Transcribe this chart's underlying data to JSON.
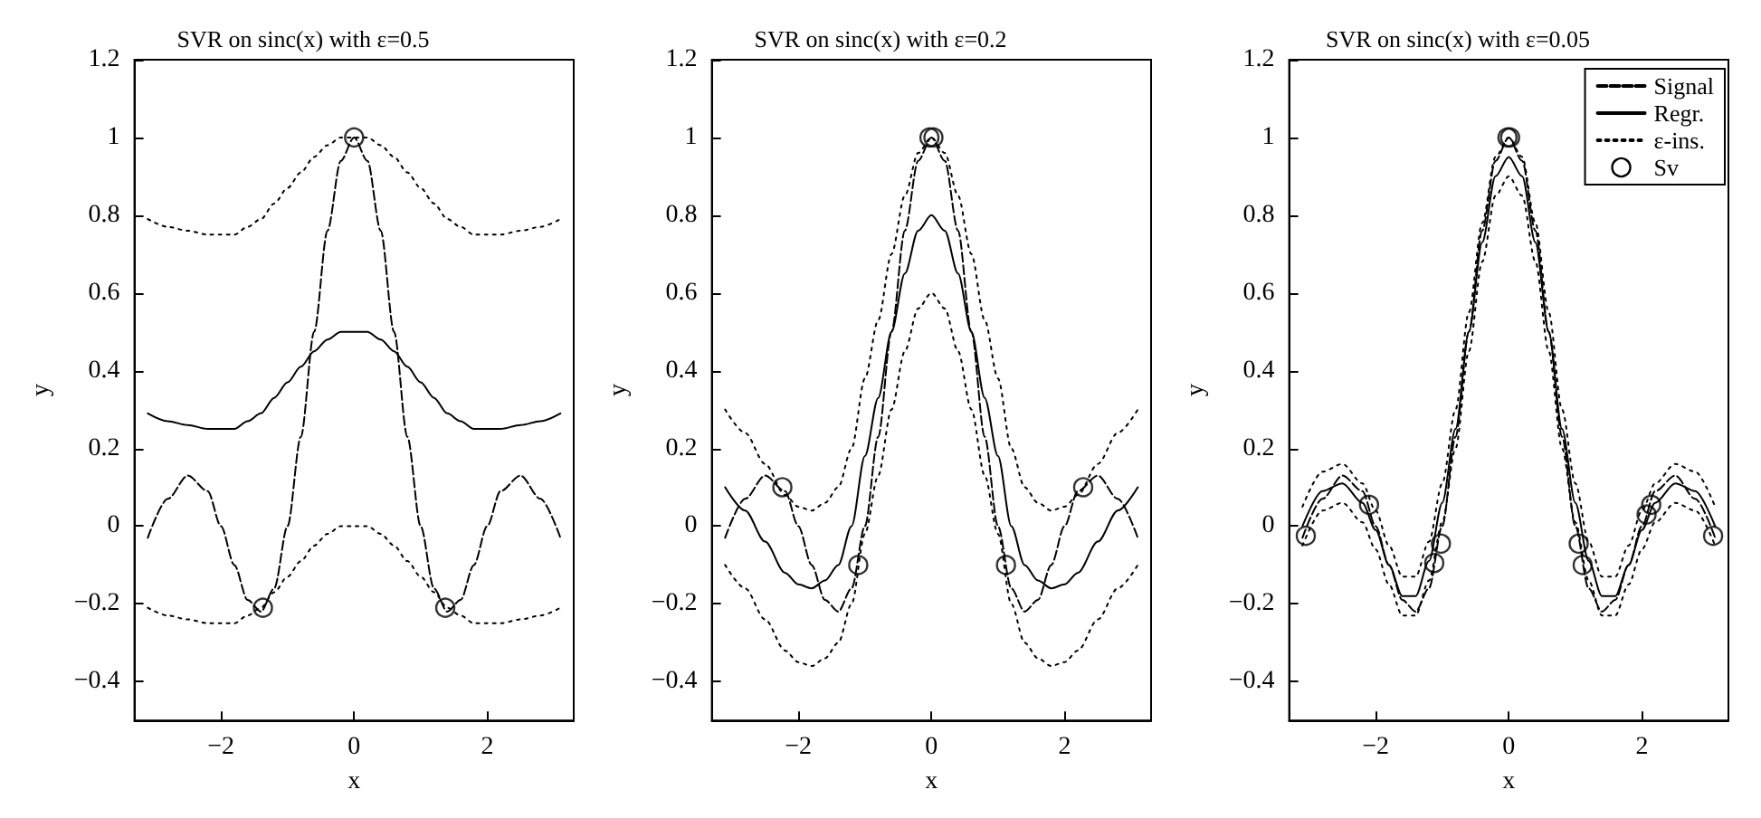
{
  "chart_data": [
    {
      "type": "line",
      "title": "SVR on sinc(x) with ε=0.5",
      "xlabel": "x",
      "ylabel": "y",
      "xlim": [
        -3.3,
        3.3
      ],
      "xticks": [
        -2,
        0,
        2
      ],
      "ylim": [
        -0.5,
        1.2
      ],
      "yticks": [
        -0.4,
        -0.2,
        0,
        0.2,
        0.4,
        0.6,
        0.8,
        1,
        1.2
      ],
      "grid": false,
      "legend": false,
      "x": [
        -3.1,
        -2.8,
        -2.5,
        -2.2,
        -2,
        -1.8,
        -1.6,
        -1.4,
        -1.2,
        -1,
        -0.8,
        -0.6,
        -0.4,
        -0.2,
        0,
        0.2,
        0.4,
        0.6,
        0.8,
        1,
        1.2,
        1.4,
        1.6,
        1.8,
        2,
        2.2,
        2.5,
        2.8,
        3.1
      ],
      "series": [
        {
          "color": "#000000",
          "line_style": "dashed",
          "marker": "none",
          "values": [
            -0.03,
            0.07,
            0.13,
            0.09,
            0,
            -0.1,
            -0.19,
            -0.22,
            -0.16,
            0,
            0.23,
            0.5,
            0.76,
            0.94,
            1,
            0.94,
            0.76,
            0.5,
            0.23,
            0,
            -0.16,
            -0.22,
            -0.19,
            -0.1,
            0,
            0.09,
            0.13,
            0.07,
            -0.03
          ]
        },
        {
          "color": "#000000",
          "line_style": "solid",
          "marker": "none",
          "values": [
            0.29,
            0.27,
            0.26,
            0.25,
            0.25,
            0.25,
            0.27,
            0.29,
            0.33,
            0.37,
            0.41,
            0.45,
            0.48,
            0.5,
            0.5,
            0.5,
            0.48,
            0.45,
            0.41,
            0.37,
            0.33,
            0.29,
            0.27,
            0.25,
            0.25,
            0.25,
            0.26,
            0.27,
            0.29
          ]
        },
        {
          "color": "#000000",
          "line_style": "dotted",
          "marker": "none",
          "values": [
            0.79,
            0.77,
            0.76,
            0.75,
            0.75,
            0.75,
            0.77,
            0.79,
            0.83,
            0.87,
            0.91,
            0.95,
            0.98,
            1,
            1,
            1,
            0.98,
            0.95,
            0.91,
            0.87,
            0.83,
            0.79,
            0.77,
            0.75,
            0.75,
            0.75,
            0.76,
            0.77,
            0.79
          ]
        },
        {
          "color": "#000000",
          "line_style": "dotted",
          "marker": "none",
          "values": [
            -0.21,
            -0.23,
            -0.24,
            -0.25,
            -0.25,
            -0.25,
            -0.23,
            -0.21,
            -0.17,
            -0.13,
            -0.09,
            -0.05,
            -0.02,
            0,
            0,
            0,
            -0.02,
            -0.05,
            -0.09,
            -0.13,
            -0.17,
            -0.21,
            -0.23,
            -0.25,
            -0.25,
            -0.25,
            -0.24,
            -0.23,
            -0.21
          ]
        },
        {
          "type": "scatter",
          "color": "#000000",
          "marker": "circle",
          "x": [
            -1.37,
            0,
            1.37
          ],
          "values": [
            -0.21,
            1,
            -0.21
          ]
        }
      ]
    },
    {
      "type": "line",
      "title": "SVR on sinc(x) with ε=0.2",
      "xlabel": "x",
      "ylabel": "y",
      "xlim": [
        -3.3,
        3.3
      ],
      "xticks": [
        -2,
        0,
        2
      ],
      "ylim": [
        -0.5,
        1.2
      ],
      "yticks": [
        -0.4,
        -0.2,
        0,
        0.2,
        0.4,
        0.6,
        0.8,
        1,
        1.2
      ],
      "grid": false,
      "legend": false,
      "x": [
        -3.1,
        -2.8,
        -2.5,
        -2.2,
        -2,
        -1.8,
        -1.6,
        -1.4,
        -1.2,
        -1,
        -0.8,
        -0.6,
        -0.4,
        -0.2,
        0,
        0.2,
        0.4,
        0.6,
        0.8,
        1,
        1.2,
        1.4,
        1.6,
        1.8,
        2,
        2.2,
        2.5,
        2.8,
        3.1
      ],
      "series": [
        {
          "color": "#000000",
          "line_style": "dashed",
          "marker": "none",
          "values": [
            -0.03,
            0.07,
            0.13,
            0.09,
            0,
            -0.1,
            -0.19,
            -0.22,
            -0.16,
            0,
            0.23,
            0.5,
            0.76,
            0.94,
            1,
            0.94,
            0.76,
            0.5,
            0.23,
            0,
            -0.16,
            -0.22,
            -0.19,
            -0.1,
            0,
            0.09,
            0.13,
            0.07,
            -0.03
          ]
        },
        {
          "color": "#000000",
          "line_style": "solid",
          "marker": "none",
          "values": [
            0.1,
            0.04,
            -0.04,
            -0.12,
            -0.15,
            -0.16,
            -0.14,
            -0.1,
            0,
            0.18,
            0.33,
            0.5,
            0.65,
            0.76,
            0.8,
            0.76,
            0.65,
            0.5,
            0.33,
            0.18,
            0,
            -0.1,
            -0.14,
            -0.16,
            -0.15,
            -0.12,
            -0.04,
            0.04,
            0.1
          ]
        },
        {
          "color": "#000000",
          "line_style": "dotted",
          "marker": "none",
          "values": [
            0.3,
            0.24,
            0.16,
            0.08,
            0.05,
            0.04,
            0.06,
            0.1,
            0.2,
            0.38,
            0.53,
            0.7,
            0.85,
            0.96,
            1,
            0.96,
            0.85,
            0.7,
            0.53,
            0.38,
            0.2,
            0.1,
            0.06,
            0.04,
            0.05,
            0.08,
            0.16,
            0.24,
            0.3
          ]
        },
        {
          "color": "#000000",
          "line_style": "dotted",
          "marker": "none",
          "values": [
            -0.1,
            -0.16,
            -0.24,
            -0.32,
            -0.35,
            -0.36,
            -0.34,
            -0.3,
            -0.2,
            -0.02,
            0.13,
            0.3,
            0.45,
            0.56,
            0.6,
            0.56,
            0.45,
            0.3,
            0.13,
            -0.02,
            -0.2,
            -0.3,
            -0.34,
            -0.36,
            -0.35,
            -0.32,
            -0.24,
            -0.16,
            -0.1
          ]
        },
        {
          "type": "scatter",
          "color": "#000000",
          "marker": "circle",
          "x": [
            -2.24,
            -1.1,
            -0.03,
            0.03,
            1.12,
            2.28
          ],
          "values": [
            0.1,
            -0.1,
            1,
            1,
            -0.1,
            0.1
          ]
        }
      ]
    },
    {
      "type": "line",
      "title": "SVR on sinc(x) with ε=0.05",
      "xlabel": "x",
      "ylabel": "y",
      "xlim": [
        -3.3,
        3.3
      ],
      "xticks": [
        -2,
        0,
        2
      ],
      "ylim": [
        -0.5,
        1.2
      ],
      "yticks": [
        -0.4,
        -0.2,
        0,
        0.2,
        0.4,
        0.6,
        0.8,
        1,
        1.2
      ],
      "grid": false,
      "legend": "top right",
      "x": [
        -3.1,
        -2.8,
        -2.5,
        -2.2,
        -2,
        -1.8,
        -1.6,
        -1.4,
        -1.2,
        -1,
        -0.8,
        -0.6,
        -0.4,
        -0.2,
        0,
        0.2,
        0.4,
        0.6,
        0.8,
        1,
        1.2,
        1.4,
        1.6,
        1.8,
        2,
        2.2,
        2.5,
        2.8,
        3.1
      ],
      "series": [
        {
          "name": "Signal",
          "color": "#000000",
          "line_style": "dashed",
          "marker": "none",
          "values": [
            -0.03,
            0.07,
            0.13,
            0.09,
            0,
            -0.1,
            -0.19,
            -0.22,
            -0.16,
            0,
            0.23,
            0.5,
            0.76,
            0.94,
            1,
            0.94,
            0.76,
            0.5,
            0.23,
            0,
            -0.16,
            -0.22,
            -0.19,
            -0.1,
            0,
            0.09,
            0.13,
            0.07,
            -0.03
          ]
        },
        {
          "name": "Regr.",
          "color": "#000000",
          "line_style": "solid",
          "marker": "none",
          "values": [
            0,
            0.09,
            0.11,
            0.06,
            -0.01,
            -0.1,
            -0.18,
            -0.18,
            -0.09,
            0.06,
            0.25,
            0.5,
            0.73,
            0.9,
            0.95,
            0.9,
            0.73,
            0.5,
            0.25,
            0.06,
            -0.09,
            -0.18,
            -0.18,
            -0.1,
            -0.01,
            0.06,
            0.11,
            0.09,
            0
          ]
        },
        {
          "name": "ε-ins.",
          "color": "#000000",
          "line_style": "dotted",
          "marker": "none",
          "values": [
            0.05,
            0.14,
            0.16,
            0.11,
            0.04,
            -0.05,
            -0.13,
            -0.13,
            -0.04,
            0.11,
            0.3,
            0.55,
            0.78,
            0.95,
            1,
            0.95,
            0.78,
            0.55,
            0.3,
            0.11,
            -0.04,
            -0.13,
            -0.13,
            -0.05,
            0.04,
            0.11,
            0.16,
            0.14,
            0.05
          ]
        },
        {
          "color": "#000000",
          "line_style": "dotted",
          "marker": "none",
          "values": [
            -0.05,
            0.04,
            0.06,
            0.01,
            -0.06,
            -0.15,
            -0.23,
            -0.23,
            -0.14,
            0.01,
            0.2,
            0.45,
            0.68,
            0.85,
            0.9,
            0.85,
            0.68,
            0.45,
            0.2,
            0.01,
            -0.14,
            -0.23,
            -0.23,
            -0.15,
            -0.06,
            0.01,
            0.06,
            0.04,
            -0.05
          ]
        },
        {
          "name": "Sv",
          "type": "scatter",
          "color": "#000000",
          "marker": "circle",
          "x": [
            -3.05,
            -2.1,
            -1.12,
            -1.02,
            -0.02,
            0.02,
            1.05,
            1.11,
            2.07,
            2.14,
            3.07
          ],
          "values": [
            -0.025,
            0.055,
            -0.095,
            -0.045,
            1,
            1,
            -0.045,
            -0.1,
            0.03,
            0.055,
            -0.025
          ]
        }
      ]
    }
  ]
}
